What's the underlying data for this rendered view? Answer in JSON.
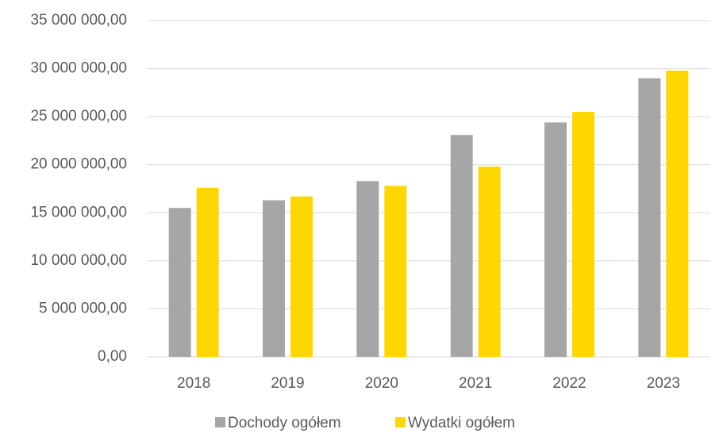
{
  "chart_data": {
    "type": "bar",
    "categories": [
      "2018",
      "2019",
      "2020",
      "2021",
      "2022",
      "2023"
    ],
    "series": [
      {
        "name": "Dochody ogółem",
        "color": "#a6a6a6",
        "values": [
          15500000,
          16300000,
          18300000,
          23100000,
          24400000,
          29000000
        ]
      },
      {
        "name": "Wydatki ogółem",
        "color": "#ffd700",
        "values": [
          17600000,
          16700000,
          17800000,
          19800000,
          25500000,
          29800000
        ]
      }
    ],
    "ylim": [
      0,
      35000000
    ],
    "yticks": [
      {
        "value": 0,
        "label": "0,00"
      },
      {
        "value": 5000000,
        "label": "5 000 000,00"
      },
      {
        "value": 10000000,
        "label": "10 000 000,00"
      },
      {
        "value": 15000000,
        "label": "15 000 000,00"
      },
      {
        "value": 20000000,
        "label": "20 000 000,00"
      },
      {
        "value": 25000000,
        "label": "25 000 000,00"
      },
      {
        "value": 30000000,
        "label": "30 000 000,00"
      },
      {
        "value": 35000000,
        "label": "35 000 000,00"
      }
    ],
    "grid": true,
    "legend": "bottom"
  }
}
